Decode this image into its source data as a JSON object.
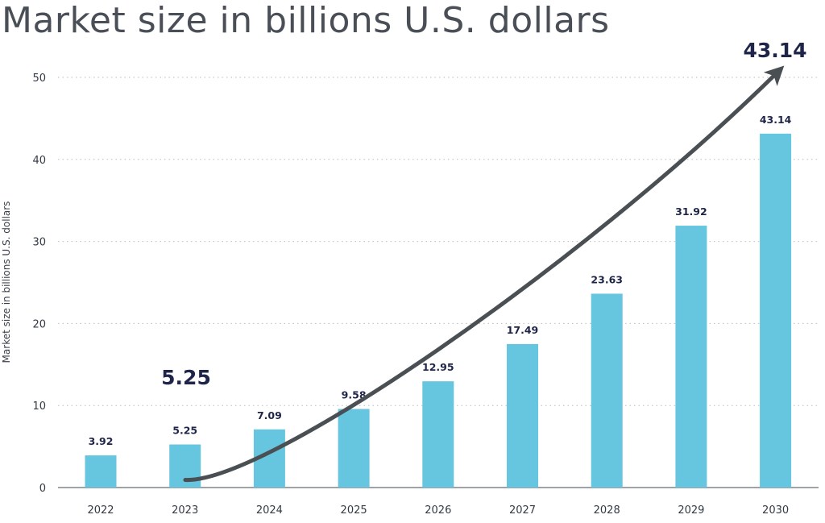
{
  "chart_data": {
    "type": "bar",
    "title": "Market size in billions U.S. dollars",
    "ylabel": "Market size in billions U.S. dollars",
    "xlabel": "",
    "categories": [
      "2022",
      "2023",
      "2024",
      "2025",
      "2026",
      "2027",
      "2028",
      "2029",
      "2030"
    ],
    "values": [
      3.92,
      5.25,
      7.09,
      9.58,
      12.95,
      17.49,
      23.63,
      31.92,
      43.14
    ],
    "data_labels": [
      "3.92",
      "5.25",
      "7.09",
      "9.58",
      "12.95",
      "17.49",
      "23.63",
      "31.92",
      "43.14"
    ],
    "ylim": [
      0,
      50
    ],
    "yticks": [
      0,
      10,
      20,
      30,
      40,
      50
    ],
    "grid": "horizontal dotted",
    "bar_color": "#66c5df",
    "arrow_color": "#4a4f54",
    "label_color": "#1f2548",
    "callouts": {
      "start": "5.25",
      "end": "43.14"
    }
  }
}
